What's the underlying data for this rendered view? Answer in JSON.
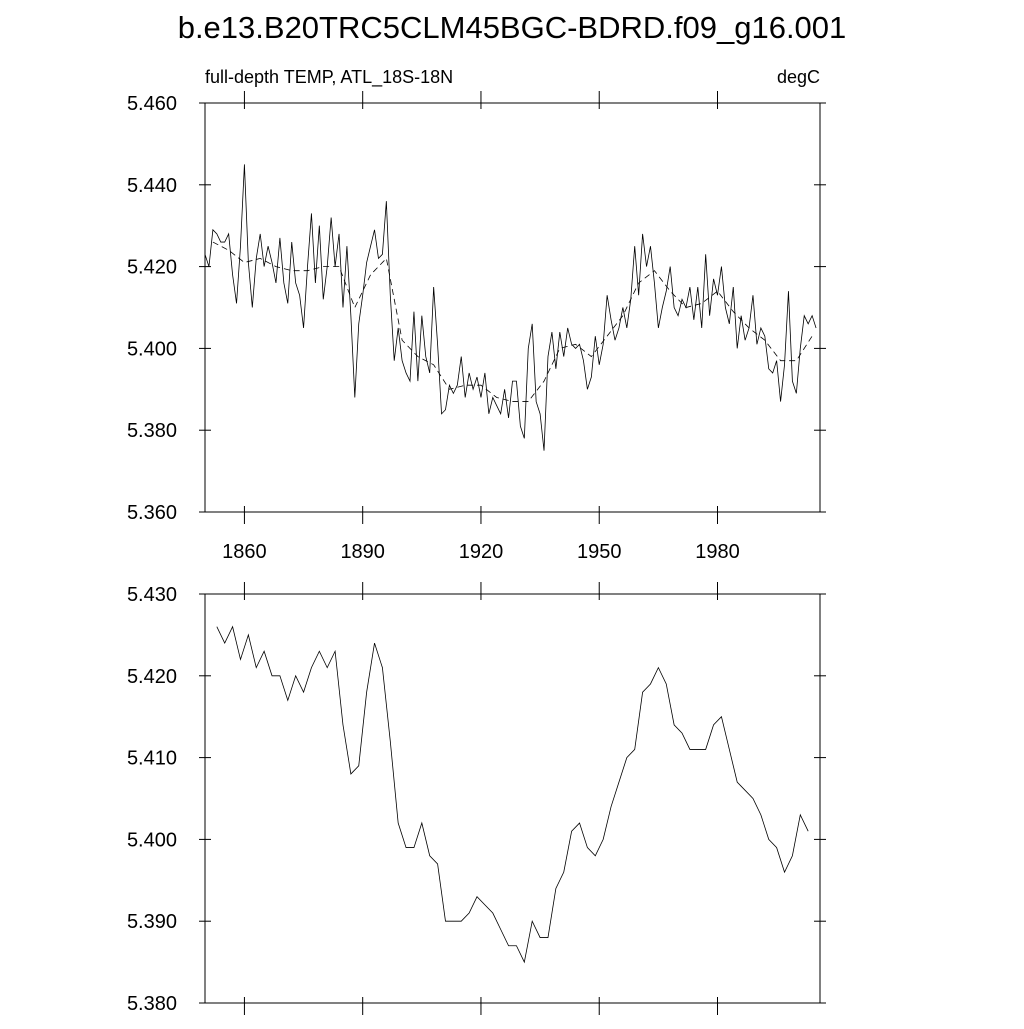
{
  "title": "b.e13.B20TRC5CLM45BGC-BDRD.f09_g16.001",
  "chart_data": [
    {
      "type": "line",
      "subtitle_left": "full-depth TEMP, ATL_18S-18N",
      "subtitle_right": "degC",
      "xlim": [
        1850,
        2006
      ],
      "xticks": [
        1860,
        1890,
        1920,
        1950,
        1980
      ],
      "ylim": [
        5.36,
        5.46
      ],
      "yticks": [
        {
          "value": 5.36,
          "label": "5.360"
        },
        {
          "value": 5.38,
          "label": "5.380"
        },
        {
          "value": 5.4,
          "label": "5.400"
        },
        {
          "value": 5.42,
          "label": "5.420"
        },
        {
          "value": 5.44,
          "label": "5.440"
        },
        {
          "value": 5.46,
          "label": "5.460"
        }
      ],
      "series": [
        {
          "color": "#000000",
          "dash": false,
          "x": [
            1850,
            1851,
            1852,
            1853,
            1854,
            1855,
            1856,
            1857,
            1858,
            1859,
            1860,
            1861,
            1862,
            1863,
            1864,
            1865,
            1866,
            1867,
            1868,
            1869,
            1870,
            1871,
            1872,
            1873,
            1874,
            1875,
            1876,
            1877,
            1878,
            1879,
            1880,
            1881,
            1882,
            1883,
            1884,
            1885,
            1886,
            1887,
            1888,
            1889,
            1890,
            1891,
            1892,
            1893,
            1894,
            1895,
            1896,
            1897,
            1898,
            1899,
            1900,
            1901,
            1902,
            1903,
            1904,
            1905,
            1906,
            1907,
            1908,
            1909,
            1910,
            1911,
            1912,
            1913,
            1914,
            1915,
            1916,
            1917,
            1918,
            1919,
            1920,
            1921,
            1922,
            1923,
            1924,
            1925,
            1926,
            1927,
            1928,
            1929,
            1930,
            1931,
            1932,
            1933,
            1934,
            1935,
            1936,
            1937,
            1938,
            1939,
            1940,
            1941,
            1942,
            1943,
            1944,
            1945,
            1946,
            1947,
            1948,
            1949,
            1950,
            1951,
            1952,
            1953,
            1954,
            1955,
            1956,
            1957,
            1958,
            1959,
            1960,
            1961,
            1962,
            1963,
            1964,
            1965,
            1966,
            1967,
            1968,
            1969,
            1970,
            1971,
            1972,
            1973,
            1974,
            1975,
            1976,
            1977,
            1978,
            1979,
            1980,
            1981,
            1982,
            1983,
            1984,
            1985,
            1986,
            1987,
            1988,
            1989,
            1990,
            1991,
            1992,
            1993,
            1994,
            1995,
            1996,
            1997,
            1998,
            1999,
            2000,
            2001,
            2002,
            2003,
            2004,
            2005
          ],
          "values": [
            5.423,
            5.42,
            5.429,
            5.428,
            5.426,
            5.426,
            5.428,
            5.418,
            5.411,
            5.425,
            5.445,
            5.421,
            5.41,
            5.422,
            5.428,
            5.42,
            5.425,
            5.421,
            5.416,
            5.427,
            5.416,
            5.411,
            5.426,
            5.416,
            5.413,
            5.405,
            5.42,
            5.433,
            5.416,
            5.43,
            5.412,
            5.42,
            5.432,
            5.42,
            5.428,
            5.41,
            5.425,
            5.408,
            5.388,
            5.406,
            5.413,
            5.421,
            5.425,
            5.429,
            5.422,
            5.423,
            5.436,
            5.413,
            5.397,
            5.405,
            5.397,
            5.394,
            5.392,
            5.409,
            5.392,
            5.408,
            5.398,
            5.394,
            5.415,
            5.401,
            5.384,
            5.385,
            5.391,
            5.389,
            5.391,
            5.398,
            5.388,
            5.394,
            5.39,
            5.393,
            5.388,
            5.394,
            5.384,
            5.388,
            5.386,
            5.384,
            5.39,
            5.383,
            5.392,
            5.392,
            5.381,
            5.378,
            5.4,
            5.406,
            5.387,
            5.384,
            5.375,
            5.398,
            5.404,
            5.395,
            5.404,
            5.398,
            5.405,
            5.401,
            5.4,
            5.401,
            5.397,
            5.39,
            5.393,
            5.403,
            5.396,
            5.401,
            5.413,
            5.407,
            5.402,
            5.405,
            5.41,
            5.405,
            5.412,
            5.425,
            5.413,
            5.428,
            5.42,
            5.425,
            5.416,
            5.405,
            5.41,
            5.414,
            5.42,
            5.41,
            5.408,
            5.412,
            5.41,
            5.415,
            5.407,
            5.415,
            5.405,
            5.423,
            5.408,
            5.417,
            5.413,
            5.42,
            5.41,
            5.406,
            5.415,
            5.4,
            5.408,
            5.402,
            5.405,
            5.413,
            5.401,
            5.405,
            5.403,
            5.395,
            5.394,
            5.397,
            5.387,
            5.396,
            5.414,
            5.392,
            5.389,
            5.4,
            5.408,
            5.406,
            5.408,
            5.405
          ]
        },
        {
          "color": "#000000",
          "dash": true,
          "x": [
            1852,
            1856,
            1860,
            1864,
            1868,
            1872,
            1876,
            1880,
            1884,
            1888,
            1892,
            1896,
            1900,
            1904,
            1908,
            1912,
            1916,
            1920,
            1924,
            1928,
            1932,
            1936,
            1940,
            1944,
            1948,
            1952,
            1956,
            1960,
            1964,
            1968,
            1972,
            1976,
            1980,
            1984,
            1988,
            1992,
            1996,
            2000,
            2004
          ],
          "values": [
            5.426,
            5.424,
            5.421,
            5.422,
            5.42,
            5.419,
            5.419,
            5.42,
            5.42,
            5.41,
            5.418,
            5.422,
            5.402,
            5.398,
            5.396,
            5.39,
            5.391,
            5.391,
            5.388,
            5.387,
            5.387,
            5.392,
            5.4,
            5.401,
            5.398,
            5.403,
            5.408,
            5.416,
            5.419,
            5.414,
            5.41,
            5.411,
            5.414,
            5.409,
            5.405,
            5.402,
            5.397,
            5.397,
            5.403
          ]
        }
      ]
    },
    {
      "type": "line",
      "xlim": [
        1850,
        2006
      ],
      "xticks": [
        1860,
        1890,
        1920,
        1950,
        1980
      ],
      "ylim": [
        5.38,
        5.43
      ],
      "yticks": [
        {
          "value": 5.38,
          "label": "5.380"
        },
        {
          "value": 5.39,
          "label": "5.390"
        },
        {
          "value": 5.4,
          "label": "5.400"
        },
        {
          "value": 5.41,
          "label": "5.410"
        },
        {
          "value": 5.42,
          "label": "5.420"
        },
        {
          "value": 5.43,
          "label": "5.430"
        }
      ],
      "show_xtick_labels": false,
      "series": [
        {
          "color": "#000000",
          "dash": false,
          "x": [
            1853,
            1855,
            1857,
            1859,
            1861,
            1863,
            1865,
            1867,
            1869,
            1871,
            1873,
            1875,
            1877,
            1879,
            1881,
            1883,
            1885,
            1887,
            1889,
            1891,
            1893,
            1895,
            1897,
            1899,
            1901,
            1903,
            1905,
            1907,
            1909,
            1911,
            1913,
            1915,
            1917,
            1919,
            1921,
            1923,
            1925,
            1927,
            1929,
            1931,
            1933,
            1935,
            1937,
            1939,
            1941,
            1943,
            1945,
            1947,
            1949,
            1951,
            1953,
            1955,
            1957,
            1959,
            1961,
            1963,
            1965,
            1967,
            1969,
            1971,
            1973,
            1975,
            1977,
            1979,
            1981,
            1983,
            1985,
            1987,
            1989,
            1991,
            1993,
            1995,
            1997,
            1999,
            2001,
            2003
          ],
          "values": [
            5.426,
            5.424,
            5.426,
            5.422,
            5.425,
            5.421,
            5.423,
            5.42,
            5.42,
            5.417,
            5.42,
            5.418,
            5.421,
            5.423,
            5.421,
            5.423,
            5.414,
            5.408,
            5.409,
            5.418,
            5.424,
            5.421,
            5.412,
            5.402,
            5.399,
            5.399,
            5.402,
            5.398,
            5.397,
            5.39,
            5.39,
            5.39,
            5.391,
            5.393,
            5.392,
            5.391,
            5.389,
            5.387,
            5.387,
            5.385,
            5.39,
            5.388,
            5.388,
            5.394,
            5.396,
            5.401,
            5.402,
            5.399,
            5.398,
            5.4,
            5.404,
            5.407,
            5.41,
            5.411,
            5.418,
            5.419,
            5.421,
            5.419,
            5.414,
            5.413,
            5.411,
            5.411,
            5.411,
            5.414,
            5.415,
            5.411,
            5.407,
            5.406,
            5.405,
            5.403,
            5.4,
            5.399,
            5.396,
            5.398,
            5.403,
            5.401
          ]
        }
      ]
    }
  ]
}
